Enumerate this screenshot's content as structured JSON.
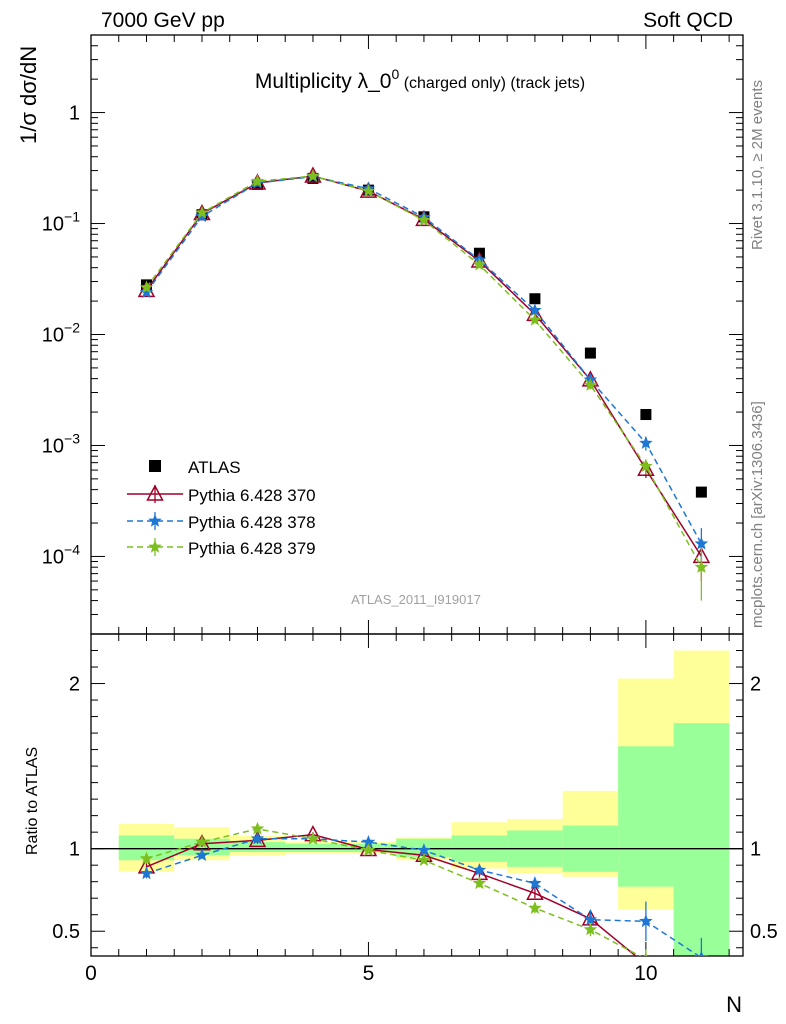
{
  "header": {
    "left": "7000 GeV pp",
    "right": "Soft QCD"
  },
  "side_labels": {
    "rivet": "Rivet 3.1.10, ≥ 2M events",
    "mcplots": "mcplots.cern.ch [arXiv:1306.3436]"
  },
  "analysis_id": "ATLAS_2011_I919017",
  "colors": {
    "data": "#000000",
    "p370": "#a0002a",
    "p378": "#1f77d4",
    "p379": "#7cbf1e",
    "band_inner": "#99ff99",
    "band_outer": "#ffff99"
  },
  "chart_data": [
    {
      "type": "line",
      "panel": "main",
      "title_main": "Multiplicity λ_0",
      "title_sup": "0",
      "title_rest": " (charged only) (track jets)",
      "ylabel": "1/σ dσ/dN",
      "yscale": "log",
      "ylim": [
        2e-05,
        5
      ],
      "xlim": [
        0,
        11.75
      ],
      "y_ticks": [
        {
          "v": 1,
          "base": "1",
          "exp": ""
        },
        {
          "v": 0.1,
          "base": "10",
          "exp": "−1"
        },
        {
          "v": 0.01,
          "base": "10",
          "exp": "−2"
        },
        {
          "v": 0.001,
          "base": "10",
          "exp": "−3"
        },
        {
          "v": 0.0001,
          "base": "10",
          "exp": "−4"
        }
      ],
      "legend_position": "bottom-left",
      "legend": [
        "ATLAS",
        "Pythia 6.428 370",
        "Pythia 6.428 378",
        "Pythia 6.428 379"
      ],
      "x": [
        1,
        2,
        3,
        4,
        5,
        6,
        7,
        8,
        9,
        10,
        11
      ],
      "series": [
        {
          "name": "ATLAS",
          "values": [
            0.028,
            0.12,
            0.225,
            0.255,
            0.2,
            0.115,
            0.054,
            0.021,
            0.0068,
            0.0019,
            0.00038
          ]
        },
        {
          "name": "Pythia 6.428 370",
          "values": [
            0.025,
            0.123,
            0.232,
            0.268,
            0.196,
            0.109,
            0.046,
            0.0152,
            0.0039,
            0.00061,
            0.0001
          ],
          "err": [
            0.001,
            0.002,
            0.003,
            0.003,
            0.003,
            0.002,
            0.001,
            0.0007,
            0.0003,
            0.0001,
            4e-05
          ]
        },
        {
          "name": "Pythia 6.428 378",
          "values": [
            0.024,
            0.116,
            0.232,
            0.265,
            0.206,
            0.114,
            0.047,
            0.0165,
            0.0039,
            0.00105,
            0.00013
          ],
          "err": [
            0.001,
            0.002,
            0.003,
            0.003,
            0.003,
            0.002,
            0.001,
            0.0008,
            0.0003,
            0.00015,
            5e-05
          ]
        },
        {
          "name": "Pythia 6.428 379",
          "values": [
            0.0265,
            0.125,
            0.24,
            0.268,
            0.196,
            0.107,
            0.0425,
            0.0135,
            0.0035,
            0.00065,
            8e-05
          ],
          "err": [
            0.001,
            0.002,
            0.003,
            0.003,
            0.003,
            0.002,
            0.001,
            0.0007,
            0.0003,
            0.0001,
            4e-05
          ]
        }
      ]
    },
    {
      "type": "line",
      "panel": "ratio",
      "ylabel": "Ratio to ATLAS",
      "xlabel": "N",
      "ylim": [
        0.35,
        2.3
      ],
      "xlim": [
        0,
        11.75
      ],
      "x_ticks": [
        0,
        5,
        10
      ],
      "y_ticks": [
        0.5,
        1,
        2
      ],
      "bands": {
        "edges": [
          0.5,
          1.5,
          2.5,
          3.5,
          4.5,
          5.5,
          6.5,
          7.5,
          8.5,
          9.5,
          10.5,
          11.5
        ],
        "inner": [
          [
            0.93,
            1.08
          ],
          [
            0.96,
            1.06
          ],
          [
            0.98,
            1.04
          ],
          [
            0.98,
            1.03
          ],
          [
            0.98,
            1.03
          ],
          [
            0.95,
            1.06
          ],
          [
            0.92,
            1.08
          ],
          [
            0.89,
            1.11
          ],
          [
            0.86,
            1.14
          ],
          [
            0.77,
            1.62
          ],
          [
            0.35,
            1.76
          ]
        ],
        "outer": [
          [
            0.86,
            1.15
          ],
          [
            0.93,
            1.13
          ],
          [
            0.96,
            1.08
          ],
          [
            0.97,
            1.04
          ],
          [
            0.97,
            1.04
          ],
          [
            0.93,
            1.07
          ],
          [
            0.88,
            1.16
          ],
          [
            0.85,
            1.18
          ],
          [
            0.83,
            1.35
          ],
          [
            0.63,
            2.03
          ],
          [
            0.35,
            2.2
          ]
        ]
      },
      "x": [
        1,
        2,
        3,
        4,
        5,
        6,
        7,
        8,
        9,
        10,
        11
      ],
      "series": [
        {
          "name": "Pythia 6.428 370",
          "values": [
            0.89,
            1.03,
            1.05,
            1.085,
            0.995,
            0.96,
            0.85,
            0.73,
            0.575,
            0.3,
            0.26
          ],
          "err": [
            0.03,
            0.02,
            0.02,
            0.015,
            0.015,
            0.02,
            0.025,
            0.03,
            0.04,
            0.06,
            0.1
          ]
        },
        {
          "name": "Pythia 6.428 378",
          "values": [
            0.85,
            0.96,
            1.06,
            1.06,
            1.04,
            0.99,
            0.87,
            0.79,
            0.57,
            0.56,
            0.34
          ],
          "err": [
            0.03,
            0.02,
            0.02,
            0.015,
            0.015,
            0.02,
            0.025,
            0.035,
            0.06,
            0.12,
            0.12
          ]
        },
        {
          "name": "Pythia 6.428 379",
          "values": [
            0.94,
            1.04,
            1.12,
            1.06,
            0.99,
            0.93,
            0.79,
            0.64,
            0.51,
            0.33,
            0.22
          ],
          "err": [
            0.03,
            0.02,
            0.02,
            0.015,
            0.015,
            0.02,
            0.025,
            0.03,
            0.04,
            0.06,
            0.1
          ]
        }
      ]
    }
  ]
}
